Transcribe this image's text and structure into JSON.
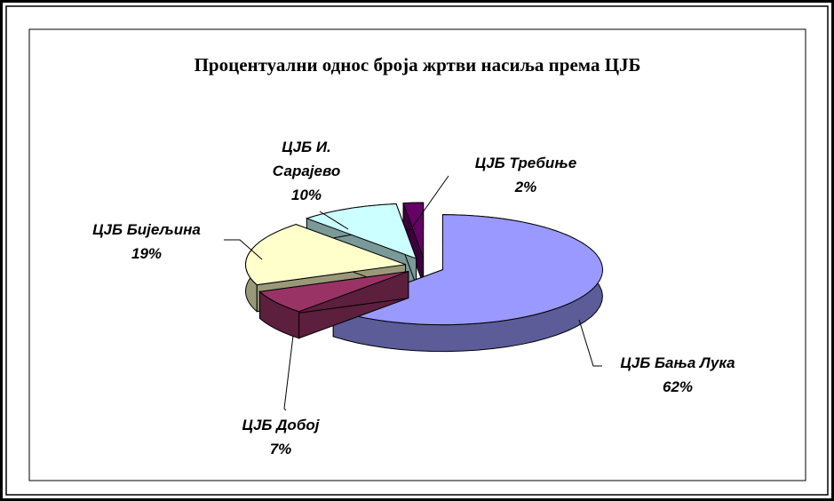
{
  "chart_data": {
    "type": "pie3d",
    "title": "Процентуални однос броја жртви насиља према ЦЈБ",
    "categories": [
      "ЦЈБ Бања Лука",
      "ЦЈБ Добој",
      "ЦЈБ Бијељина",
      "ЦЈБ И. Сарајево",
      "ЦЈБ Требиње"
    ],
    "values": [
      62,
      7,
      19,
      10,
      2
    ],
    "value_labels": [
      "62%",
      "7%",
      "19%",
      "10%",
      "2%"
    ],
    "colors": [
      "#9999ff",
      "#993366",
      "#ffffcc",
      "#ccffff",
      "#660066"
    ]
  }
}
